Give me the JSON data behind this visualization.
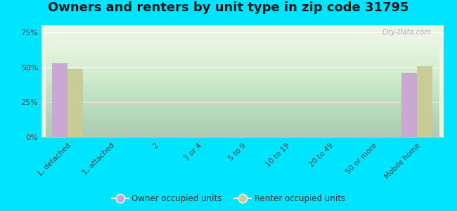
{
  "title": "Owners and renters by unit type in zip code 31795",
  "categories": [
    "1, detached",
    "1, attached",
    "2",
    "3 or 4",
    "5 to 9",
    "10 to 19",
    "20 to 49",
    "50 or more",
    "Mobile home"
  ],
  "owner_values": [
    53,
    0,
    0,
    0,
    0,
    0,
    0,
    0,
    46
  ],
  "renter_values": [
    49,
    0,
    0,
    0,
    0,
    0,
    0,
    0,
    51
  ],
  "owner_color": "#c9a8d4",
  "renter_color": "#c8cc96",
  "background_outer": "#00e5ff",
  "yticks": [
    0,
    25,
    50,
    75
  ],
  "ylim": [
    0,
    80
  ],
  "bar_width": 0.35,
  "title_fontsize": 13,
  "watermark": "City-Data.com",
  "grid_color": "#dddddd",
  "bg_top_color": "#f0f8ee",
  "bg_bottom_color": "#d4e8c2"
}
